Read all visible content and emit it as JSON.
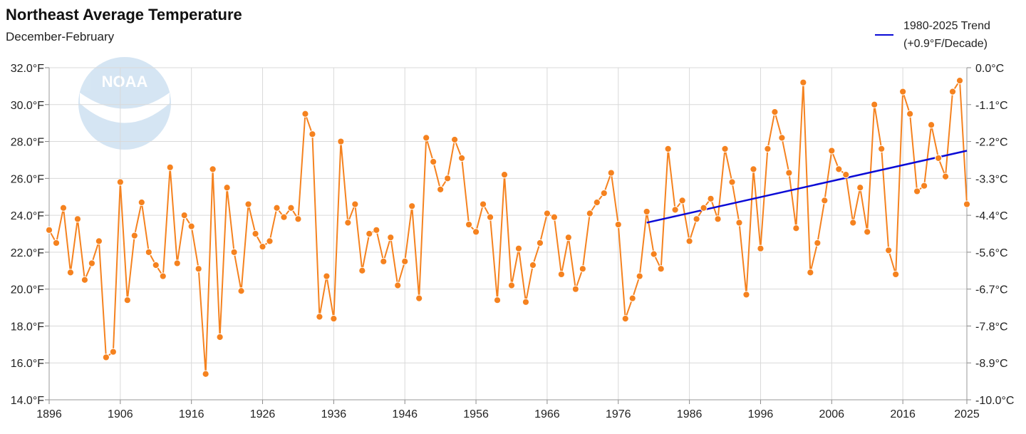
{
  "chart_data": {
    "type": "line",
    "title": "Northeast Average Temperature",
    "subtitle": "December-February",
    "xlabel": "",
    "ylabel": "",
    "x_start": 1896,
    "x_end": 2025,
    "xlim": [
      1896,
      2025
    ],
    "ylim": [
      14,
      32
    ],
    "x_ticks": [
      "1896",
      "1906",
      "1916",
      "1926",
      "1936",
      "1946",
      "1956",
      "1966",
      "1976",
      "1986",
      "1996",
      "2006",
      "2016",
      "2025"
    ],
    "y_ticks_left": [
      "14.0°F",
      "16.0°F",
      "18.0°F",
      "20.0°F",
      "22.0°F",
      "24.0°F",
      "26.0°F",
      "28.0°F",
      "30.0°F",
      "32.0°F"
    ],
    "y_ticks_right": [
      "-10.0°C",
      "-8.9°C",
      "-7.8°C",
      "-6.7°C",
      "-5.6°C",
      "-4.4°C",
      "-3.3°C",
      "-2.2°C",
      "-1.1°C",
      "0.0°C"
    ],
    "grid": true,
    "series": [
      {
        "color": "#f5821f",
        "x": [
          1896,
          1897,
          1898,
          1899,
          1900,
          1901,
          1902,
          1903,
          1904,
          1905,
          1906,
          1907,
          1908,
          1909,
          1910,
          1911,
          1912,
          1913,
          1914,
          1915,
          1916,
          1917,
          1918,
          1919,
          1920,
          1921,
          1922,
          1923,
          1924,
          1925,
          1926,
          1927,
          1928,
          1929,
          1930,
          1931,
          1932,
          1933,
          1934,
          1935,
          1936,
          1937,
          1938,
          1939,
          1940,
          1941,
          1942,
          1943,
          1944,
          1945,
          1946,
          1947,
          1948,
          1949,
          1950,
          1951,
          1952,
          1953,
          1954,
          1955,
          1956,
          1957,
          1958,
          1959,
          1960,
          1961,
          1962,
          1963,
          1964,
          1965,
          1966,
          1967,
          1968,
          1969,
          1970,
          1971,
          1972,
          1973,
          1974,
          1975,
          1976,
          1977,
          1978,
          1979,
          1980,
          1981,
          1982,
          1983,
          1984,
          1985,
          1986,
          1987,
          1988,
          1989,
          1990,
          1991,
          1992,
          1993,
          1994,
          1995,
          1996,
          1997,
          1998,
          1999,
          2000,
          2001,
          2002,
          2003,
          2004,
          2005,
          2006,
          2007,
          2008,
          2009,
          2010,
          2011,
          2012,
          2013,
          2014,
          2015,
          2016,
          2017,
          2018,
          2019,
          2020,
          2021,
          2022,
          2023,
          2024,
          2025
        ],
        "values": [
          23.2,
          22.5,
          24.4,
          20.9,
          23.8,
          20.5,
          21.4,
          22.6,
          16.3,
          16.6,
          25.8,
          19.4,
          22.9,
          24.7,
          22.0,
          21.3,
          20.7,
          26.6,
          21.4,
          24.0,
          23.4,
          21.1,
          15.4,
          26.5,
          17.4,
          25.5,
          22.0,
          19.9,
          24.6,
          23.0,
          22.3,
          22.6,
          24.4,
          23.9,
          24.4,
          23.8,
          29.5,
          28.4,
          18.5,
          20.7,
          18.4,
          28.0,
          23.6,
          24.6,
          21.0,
          23.0,
          23.2,
          21.5,
          22.8,
          20.2,
          21.5,
          24.5,
          19.5,
          28.2,
          26.9,
          25.4,
          26.0,
          28.1,
          27.1,
          23.5,
          23.1,
          24.6,
          23.9,
          19.4,
          26.2,
          20.2,
          22.2,
          19.3,
          21.3,
          22.5,
          24.1,
          23.9,
          20.8,
          22.8,
          20.0,
          21.1,
          24.1,
          24.7,
          25.2,
          26.3,
          23.5,
          18.4,
          19.5,
          20.7,
          24.2,
          21.9,
          21.1,
          27.6,
          24.3,
          24.8,
          22.6,
          23.8,
          24.4,
          24.9,
          23.8,
          27.6,
          25.8,
          23.6,
          19.7,
          26.5,
          22.2,
          27.6,
          29.6,
          28.2,
          26.3,
          23.3,
          31.2,
          20.9,
          22.5,
          24.8,
          27.5,
          26.5,
          26.2,
          23.6,
          25.5,
          23.1,
          30.0,
          27.6,
          22.1,
          20.8,
          30.7,
          29.5,
          25.3,
          25.6,
          28.9,
          27.1,
          26.1,
          30.7,
          31.3,
          24.6
        ]
      },
      {
        "name": "1980-2025 Trend",
        "label": "(+0.9°F/Decade)",
        "color": "#0a0ad6",
        "x": [
          1980,
          2025
        ],
        "values": [
          23.6,
          27.5
        ]
      }
    ]
  }
}
